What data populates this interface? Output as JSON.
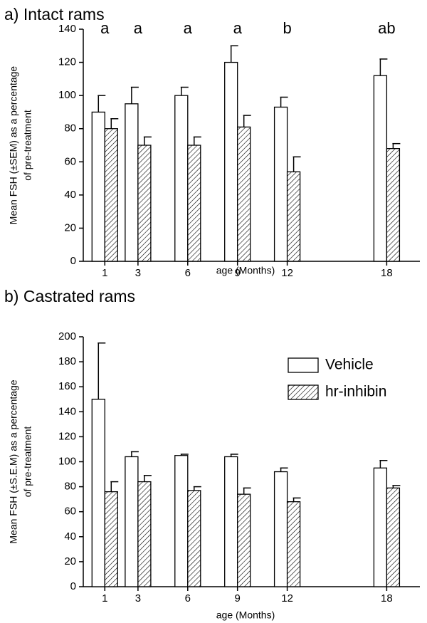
{
  "chart_data": [
    {
      "type": "bar",
      "title": "a) Intact rams",
      "xlabel": "age (Months)",
      "ylabel": [
        "Mean FSH (±SEM) as a percentage",
        "of pre-treatment"
      ],
      "x": [
        1,
        3,
        6,
        9,
        12,
        18
      ],
      "xlim": [
        -0.3,
        20
      ],
      "xticks": [
        1,
        3,
        6,
        9,
        12,
        18
      ],
      "ylim": [
        0,
        140
      ],
      "yticks": [
        0,
        20,
        40,
        60,
        80,
        100,
        120,
        140
      ],
      "annotations": [
        "a",
        "a",
        "a",
        "a",
        "b",
        "ab"
      ],
      "series": [
        {
          "name": "Vehicle",
          "color": "#ffffff",
          "hatch": false,
          "values": [
            90,
            95,
            100,
            120,
            93,
            112
          ],
          "errors": [
            10,
            10,
            5,
            10,
            6,
            10
          ]
        },
        {
          "name": "hr-inhibin",
          "color": "#ffffff",
          "hatch": true,
          "values": [
            80,
            70,
            70,
            81,
            54,
            68
          ],
          "errors": [
            6,
            5,
            5,
            7,
            9,
            3
          ]
        }
      ]
    },
    {
      "type": "bar",
      "title": "b) Castrated rams",
      "xlabel": "age (Months)",
      "ylabel": [
        "Mean FSH (±S.E.M) as a percentage",
        "of pre-treatment"
      ],
      "x": [
        1,
        3,
        6,
        9,
        12,
        18
      ],
      "xlim": [
        -0.3,
        20
      ],
      "xticks": [
        1,
        3,
        6,
        9,
        12,
        18
      ],
      "ylim": [
        0,
        200
      ],
      "yticks": [
        0,
        20,
        40,
        60,
        80,
        100,
        120,
        140,
        160,
        180,
        200
      ],
      "legend": "upper right",
      "series": [
        {
          "name": "Vehicle",
          "color": "#ffffff",
          "hatch": false,
          "values": [
            150,
            104,
            105,
            104,
            92,
            95
          ],
          "errors": [
            45,
            4,
            1,
            2,
            3,
            6
          ]
        },
        {
          "name": "hr-inhibin",
          "color": "#ffffff",
          "hatch": true,
          "values": [
            76,
            84,
            77,
            74,
            68,
            79
          ],
          "errors": [
            8,
            5,
            3,
            5,
            3,
            2
          ]
        }
      ]
    }
  ]
}
